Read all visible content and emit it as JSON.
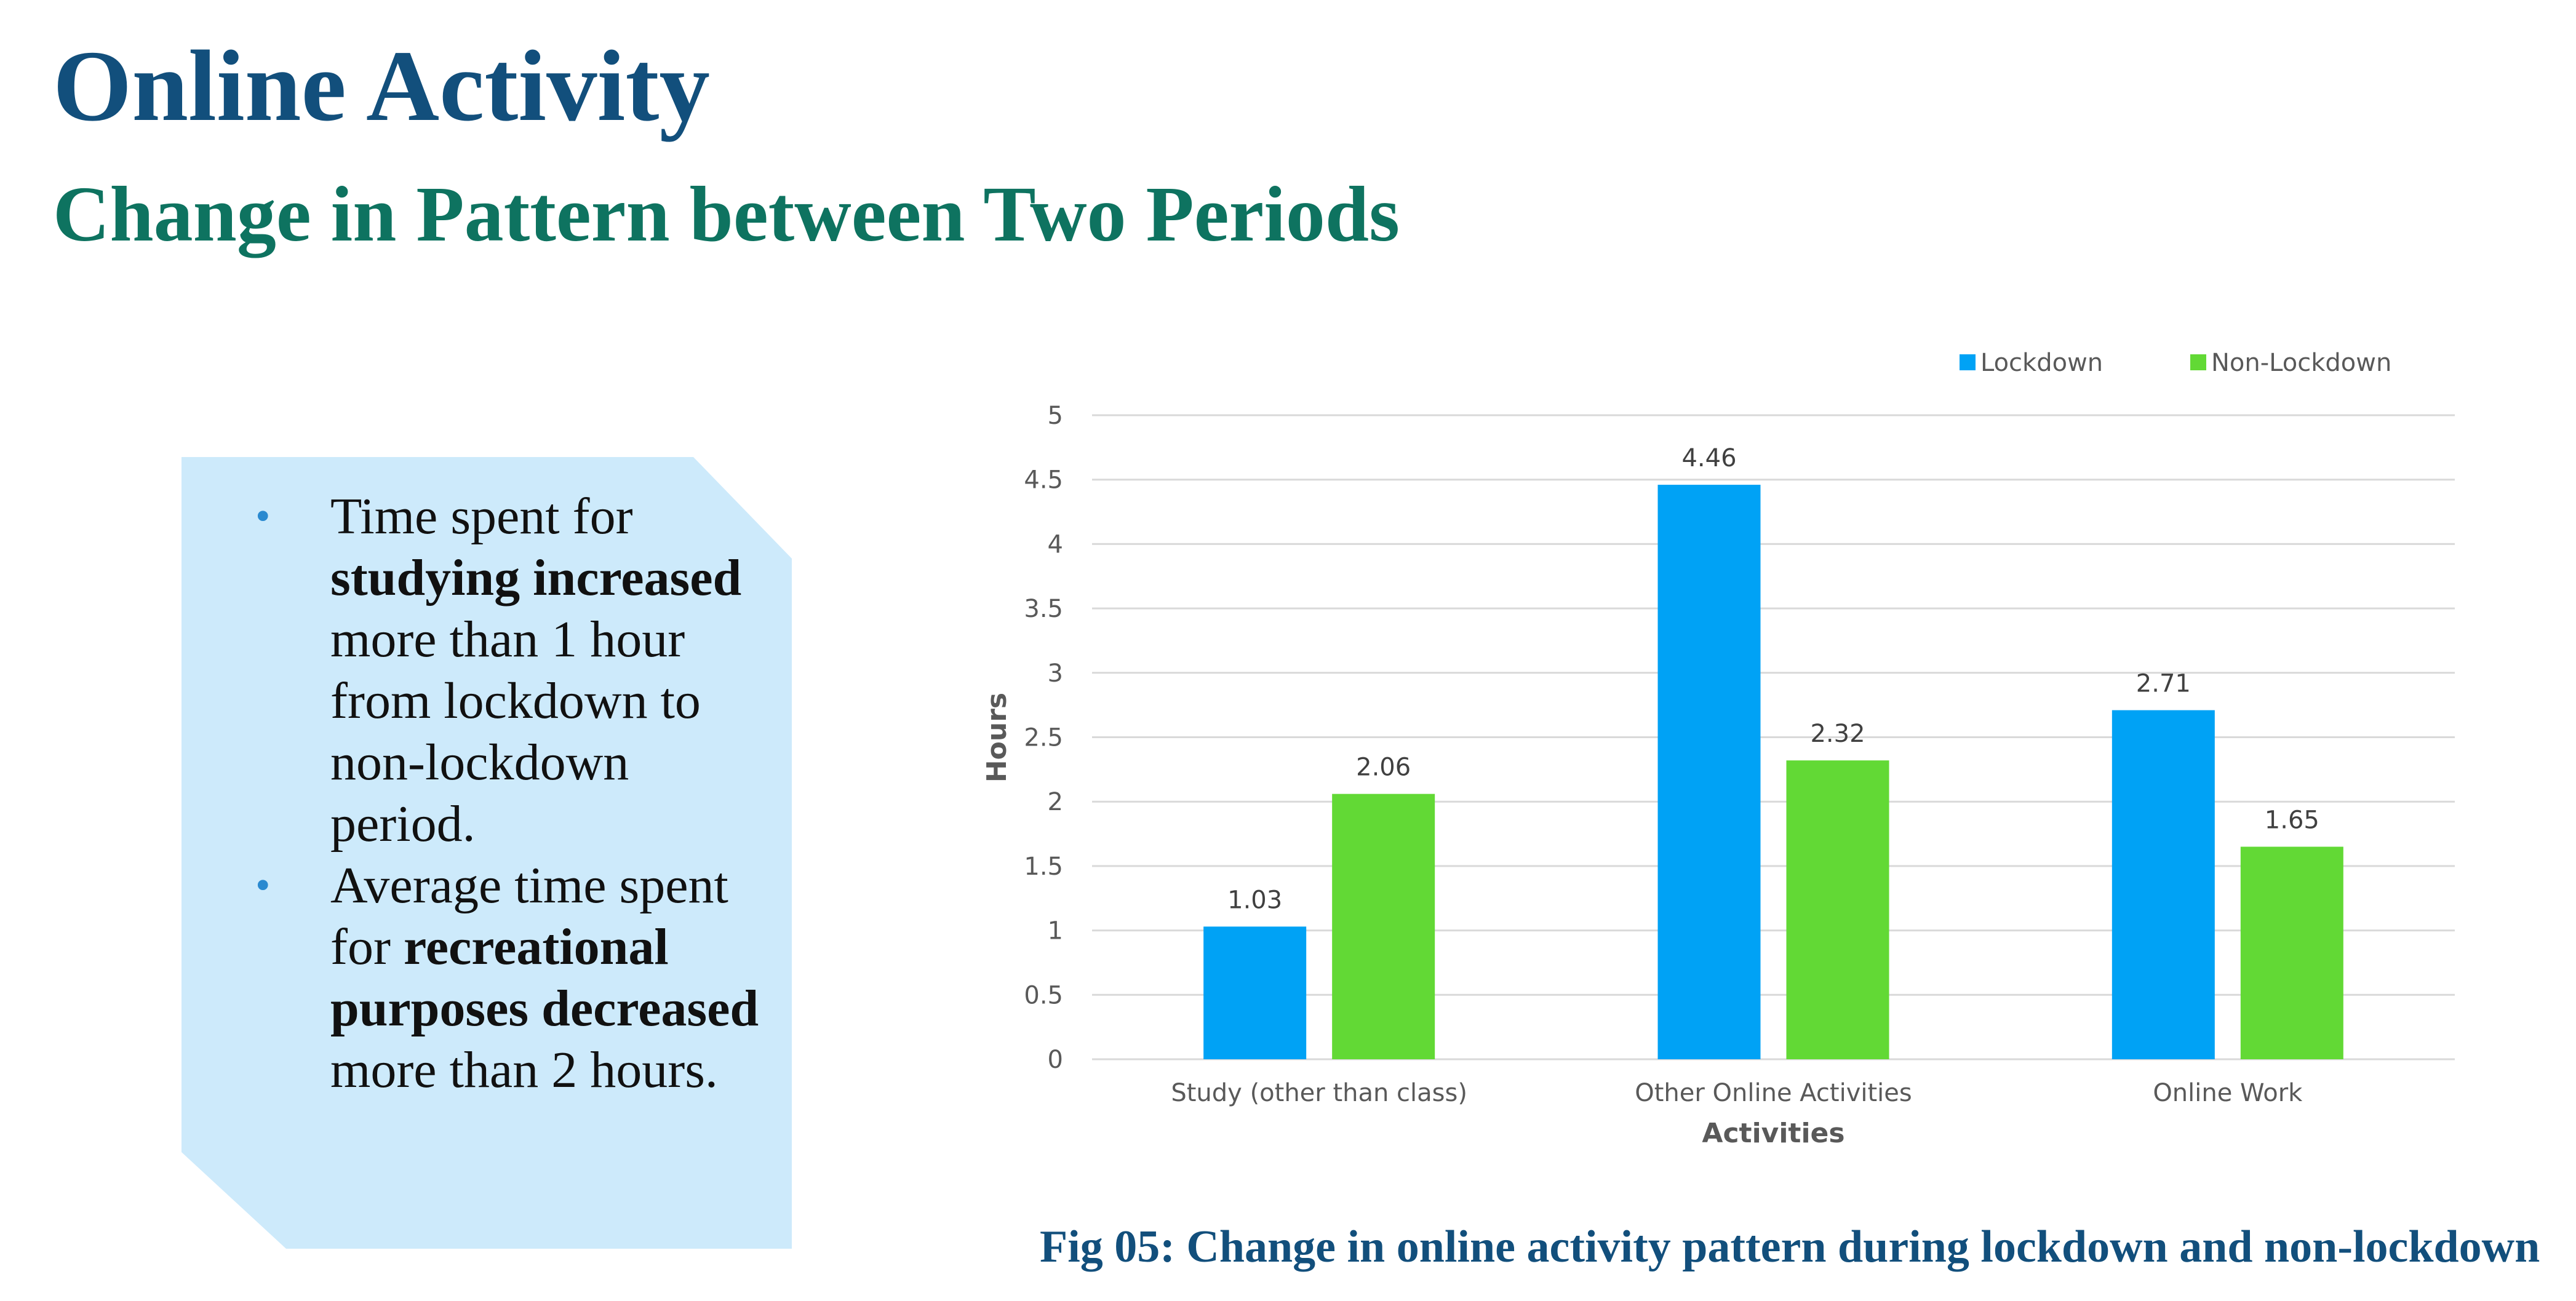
{
  "slide": {
    "title": "Online Activity",
    "subtitle": "Change in Pattern between Two Periods",
    "caption": "Fig 05: Change in online activity pattern during lockdown and non-lockdown"
  },
  "bullets": [
    {
      "pre": "Time spent for ",
      "bold": "studying increased",
      "post": " more than 1 hour from lockdown to non-lockdown period."
    },
    {
      "pre": "Average time spent for ",
      "bold": "recreational purposes decreased",
      "post": " more than 2 hours."
    }
  ],
  "chart_data": {
    "type": "bar",
    "categories": [
      "Study (other than class)",
      "Other Online Activities",
      "Online Work"
    ],
    "series": [
      {
        "name": "Lockdown",
        "values": [
          1.03,
          4.46,
          2.71
        ],
        "color": "#00a2f5"
      },
      {
        "name": "Non-Lockdown",
        "values": [
          2.06,
          2.32,
          1.65
        ],
        "color": "#62d935"
      }
    ],
    "xlabel": "Activities",
    "ylabel": "Hours",
    "ylim": [
      0,
      5
    ],
    "yticks": [
      "0",
      "0.5",
      "1",
      "1.5",
      "2",
      "2.5",
      "3",
      "3.5",
      "4",
      "4.5",
      "5"
    ],
    "grid": true,
    "legend_position": "top-right",
    "data_labels": true
  }
}
